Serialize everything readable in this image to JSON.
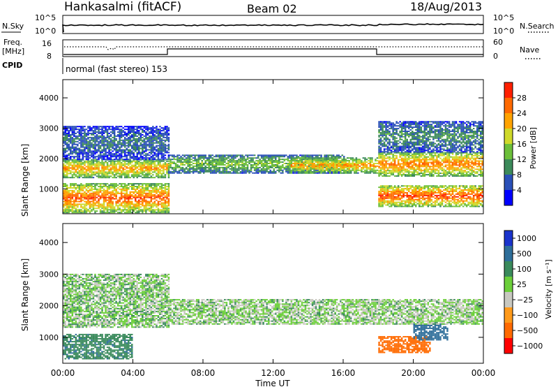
{
  "header": {
    "station": "Hankasalmi (fitACF)",
    "beam": "Beam 02",
    "date": "18/Aug/2013"
  },
  "panels": {
    "nsky": {
      "left_label": "N.Sky",
      "left_ticks": [
        "10^5",
        "10^0"
      ],
      "right_label": "N.Search",
      "right_ticks": [
        "10^5",
        "10^0"
      ]
    },
    "freq": {
      "left_label_1": "Freq.",
      "left_label_2": "[MHz]",
      "left_ticks": [
        "16",
        "8"
      ],
      "right_label": "Nave",
      "right_ticks": [
        "60",
        "0"
      ]
    },
    "cpid": {
      "label": "CPID",
      "mode": "normal (fast stereo) 153"
    }
  },
  "colorbars": {
    "power": {
      "label": "Power [dB]",
      "ticks": [
        "28",
        "24",
        "20",
        "16",
        "12",
        "8",
        "4"
      ]
    },
    "velocity": {
      "label": "Velocity [m s⁻¹]",
      "ticks": [
        "1000",
        "500",
        "100",
        "25",
        "−25",
        "−100",
        "−500",
        "−1000"
      ]
    }
  },
  "axes": {
    "xlabel": "Time UT",
    "xticks": [
      "00:00",
      "04:00",
      "08:00",
      "12:00",
      "16:00",
      "20:00",
      "00:00"
    ],
    "ylabel": "Slant Range [km]",
    "yticks": [
      "4000",
      "3000",
      "2000",
      "1000"
    ]
  },
  "colors": {
    "power_scale": [
      "#0000ff",
      "#2a50b8",
      "#3c8a5a",
      "#6cbf3a",
      "#cfd92a",
      "#ffa300",
      "#ff6a00",
      "#ff2000"
    ],
    "velocity_scale": [
      "#1a33cc",
      "#2e6e9a",
      "#3a8a5c",
      "#6ccf3a",
      "#c8c8c0",
      "#ff9a1a",
      "#ff6a00",
      "#ff0000"
    ]
  },
  "chart_data": [
    {
      "type": "heatmap",
      "title": "Power",
      "x": [
        "00:00",
        "04:00",
        "08:00",
        "12:00",
        "16:00",
        "20:00",
        "00:00"
      ],
      "ylim": [
        180,
        4600
      ],
      "zlim": [
        0,
        30
      ],
      "bands": [
        {
          "t0": 0,
          "t1": 6,
          "r0": 200,
          "r1": 1150,
          "p": 26
        },
        {
          "t0": 0,
          "t1": 6,
          "r0": 1350,
          "r1": 1950,
          "p": 22
        },
        {
          "t0": 0,
          "t1": 6,
          "r0": 1950,
          "r1": 3050,
          "p": 8
        },
        {
          "t0": 6,
          "t1": 16,
          "r0": 1500,
          "r1": 2100,
          "p": 14
        },
        {
          "t0": 13,
          "t1": 18,
          "r0": 1500,
          "r1": 2000,
          "p": 22
        },
        {
          "t0": 18,
          "t1": 24,
          "r0": 400,
          "r1": 1100,
          "p": 27
        },
        {
          "t0": 18,
          "t1": 24,
          "r0": 1400,
          "r1": 2200,
          "p": 24
        },
        {
          "t0": 18,
          "t1": 24,
          "r0": 2200,
          "r1": 3200,
          "p": 10
        }
      ]
    },
    {
      "type": "heatmap",
      "title": "Velocity",
      "x": [
        "00:00",
        "04:00",
        "08:00",
        "12:00",
        "16:00",
        "20:00",
        "00:00"
      ],
      "ylim": [
        180,
        4600
      ],
      "zlim": [
        -1000,
        1000
      ],
      "bands": [
        {
          "t0": 0,
          "t1": 4,
          "r0": 300,
          "r1": 1100,
          "v": 80
        },
        {
          "t0": 0,
          "t1": 6,
          "r0": 1300,
          "r1": 3000,
          "v": 10
        },
        {
          "t0": 6,
          "t1": 18,
          "r0": 1400,
          "r1": 2200,
          "v": 5
        },
        {
          "t0": 18,
          "t1": 21,
          "r0": 500,
          "r1": 1000,
          "v": -150
        },
        {
          "t0": 20,
          "t1": 22,
          "r0": 900,
          "r1": 1400,
          "v": 300
        },
        {
          "t0": 18,
          "t1": 24,
          "r0": 1400,
          "r1": 2200,
          "v": 5
        }
      ]
    }
  ]
}
